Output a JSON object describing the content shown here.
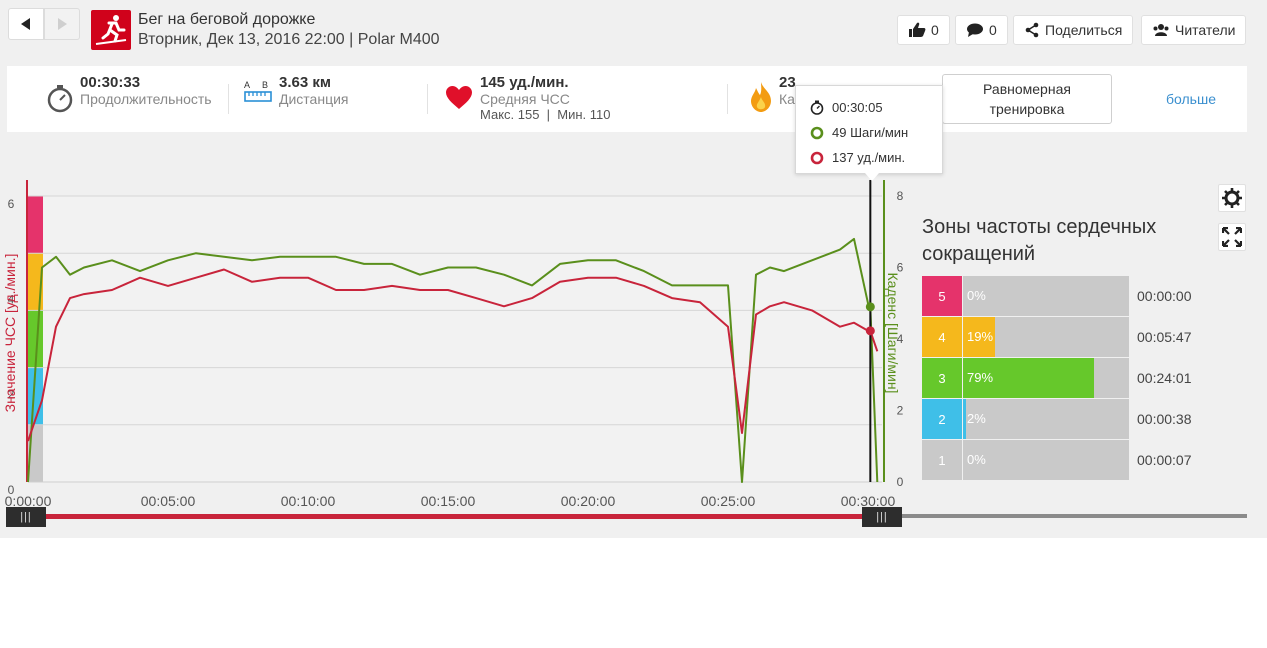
{
  "header": {
    "title": "Бег на беговой дорожке",
    "subtitle": "Вторник, Дек 13, 2016 22:00 | Polar M400",
    "likes": "0",
    "comments": "0",
    "share_label": "Поделиться",
    "readers_label": "Читатели"
  },
  "summary": {
    "duration_value": "00:30:33",
    "duration_label": "Продолжительность",
    "distance_ab": "A B",
    "distance_value": "3.63 км",
    "distance_label": "Дистанция",
    "hr_value": "145 уд./мин.",
    "hr_label": "Средняя ЧСС",
    "hr_max": "Макс. 155",
    "hr_min": "Мин. 110",
    "calories_value": "23",
    "calories_label": "Ка",
    "plan_label": "Равномерная тренировка",
    "more_label": "больше"
  },
  "tooltip": {
    "time": "00:30:05",
    "cadence": "49 Шаги/мин",
    "hr": "137 уд./мин."
  },
  "colors": {
    "heart_rate": "#c8243b",
    "cadence": "#5a8f1c",
    "zone5": "#e5336b",
    "zone4": "#f5b81c",
    "zone3": "#66c82b",
    "zone2": "#3fbfe8",
    "zone1": "#c9c9c9"
  },
  "chart_data": {
    "type": "line",
    "x": [
      "0:00:00",
      "0:00:30",
      "0:01:00",
      "0:01:30",
      "0:02:00",
      "0:03:00",
      "0:04:00",
      "0:05:00",
      "0:06:00",
      "0:07:00",
      "0:08:00",
      "0:09:00",
      "0:10:00",
      "0:11:00",
      "0:12:00",
      "0:13:00",
      "0:14:00",
      "0:15:00",
      "0:16:00",
      "0:17:00",
      "0:18:00",
      "0:19:00",
      "0:20:00",
      "0:21:00",
      "0:22:00",
      "0:23:00",
      "0:24:00",
      "0:25:00",
      "0:25:30",
      "0:26:00",
      "0:26:30",
      "0:27:00",
      "0:28:00",
      "0:29:00",
      "0:29:30",
      "0:30:00",
      "0:30:05",
      "0:30:20"
    ],
    "x_tick_labels": [
      "0:00:00",
      "00:05:00",
      "00:10:00",
      "00:15:00",
      "00:20:00",
      "00:25:00",
      "00:30:00"
    ],
    "series": [
      {
        "values": [
          110,
          120,
          138,
          145,
          146,
          147,
          150,
          148,
          150,
          152,
          149,
          150,
          150,
          147,
          147,
          148,
          147,
          147,
          145,
          143,
          145,
          149,
          150,
          150,
          148,
          145,
          144,
          138,
          112,
          141,
          143,
          144,
          142,
          138,
          139,
          137,
          137,
          132
        ]
      },
      {
        "values": [
          0,
          60,
          63,
          58,
          60,
          62,
          59,
          62,
          64,
          63,
          62,
          63,
          63,
          63,
          61,
          61,
          58,
          60,
          60,
          58,
          55,
          61,
          62,
          62,
          59,
          55,
          55,
          55,
          0,
          58,
          60,
          59,
          62,
          65,
          68,
          50,
          49,
          0
        ]
      }
    ],
    "ylabel_left": "Значение ЧСС [уд./мин.]",
    "ylabel_right": "Каденс [Шаги/мин]",
    "left_tick_labels": [
      "6",
      "4",
      "2",
      "0"
    ],
    "right_tick_labels": [
      "8",
      "6",
      "4",
      "2",
      "0"
    ],
    "hr_range": [
      100,
      170
    ],
    "cadence_range": [
      0,
      80
    ],
    "cursor_x": "0:30:05",
    "grid": true
  },
  "zones": {
    "title": "Зоны частоты сердечных сокращений",
    "items": [
      {
        "zone": "5",
        "percent": "0%",
        "pct": 0,
        "time": "00:00:00",
        "color": "#e5336b"
      },
      {
        "zone": "4",
        "percent": "19%",
        "pct": 19,
        "time": "00:05:47",
        "color": "#f5b81c"
      },
      {
        "zone": "3",
        "percent": "79%",
        "pct": 79,
        "time": "00:24:01",
        "color": "#66c82b"
      },
      {
        "zone": "2",
        "percent": "2%",
        "pct": 2,
        "time": "00:00:38",
        "color": "#3fbfe8"
      },
      {
        "zone": "1",
        "percent": "0%",
        "pct": 0,
        "time": "00:00:07",
        "color": "#c9c9c9"
      }
    ]
  }
}
